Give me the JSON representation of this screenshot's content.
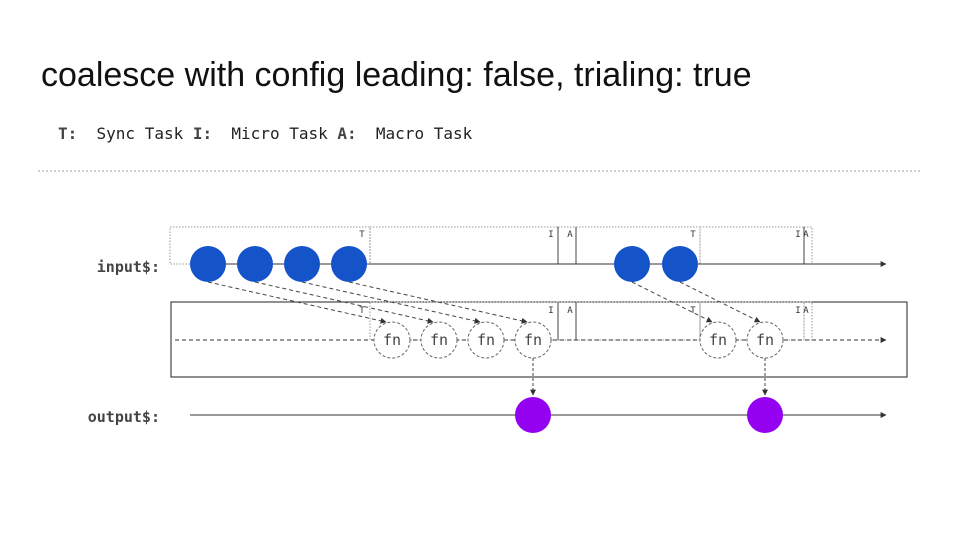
{
  "title": "coalesce with config leading: false, trialing: true",
  "legend": [
    {
      "key": "T:",
      "text": "Sync Task"
    },
    {
      "key": "I:",
      "text": "Micro Task"
    },
    {
      "key": "A:",
      "text": "Macro Task"
    }
  ],
  "streams": {
    "input_label": "input$:",
    "output_label": "output$:"
  },
  "markers": {
    "sync": "T",
    "micro": "I",
    "macro": "A"
  },
  "fn_label": "fn",
  "colors": {
    "input_marble": "#1553c9",
    "output_marble": "#9400f0",
    "line": "#333333",
    "task_box": "#999999"
  }
}
